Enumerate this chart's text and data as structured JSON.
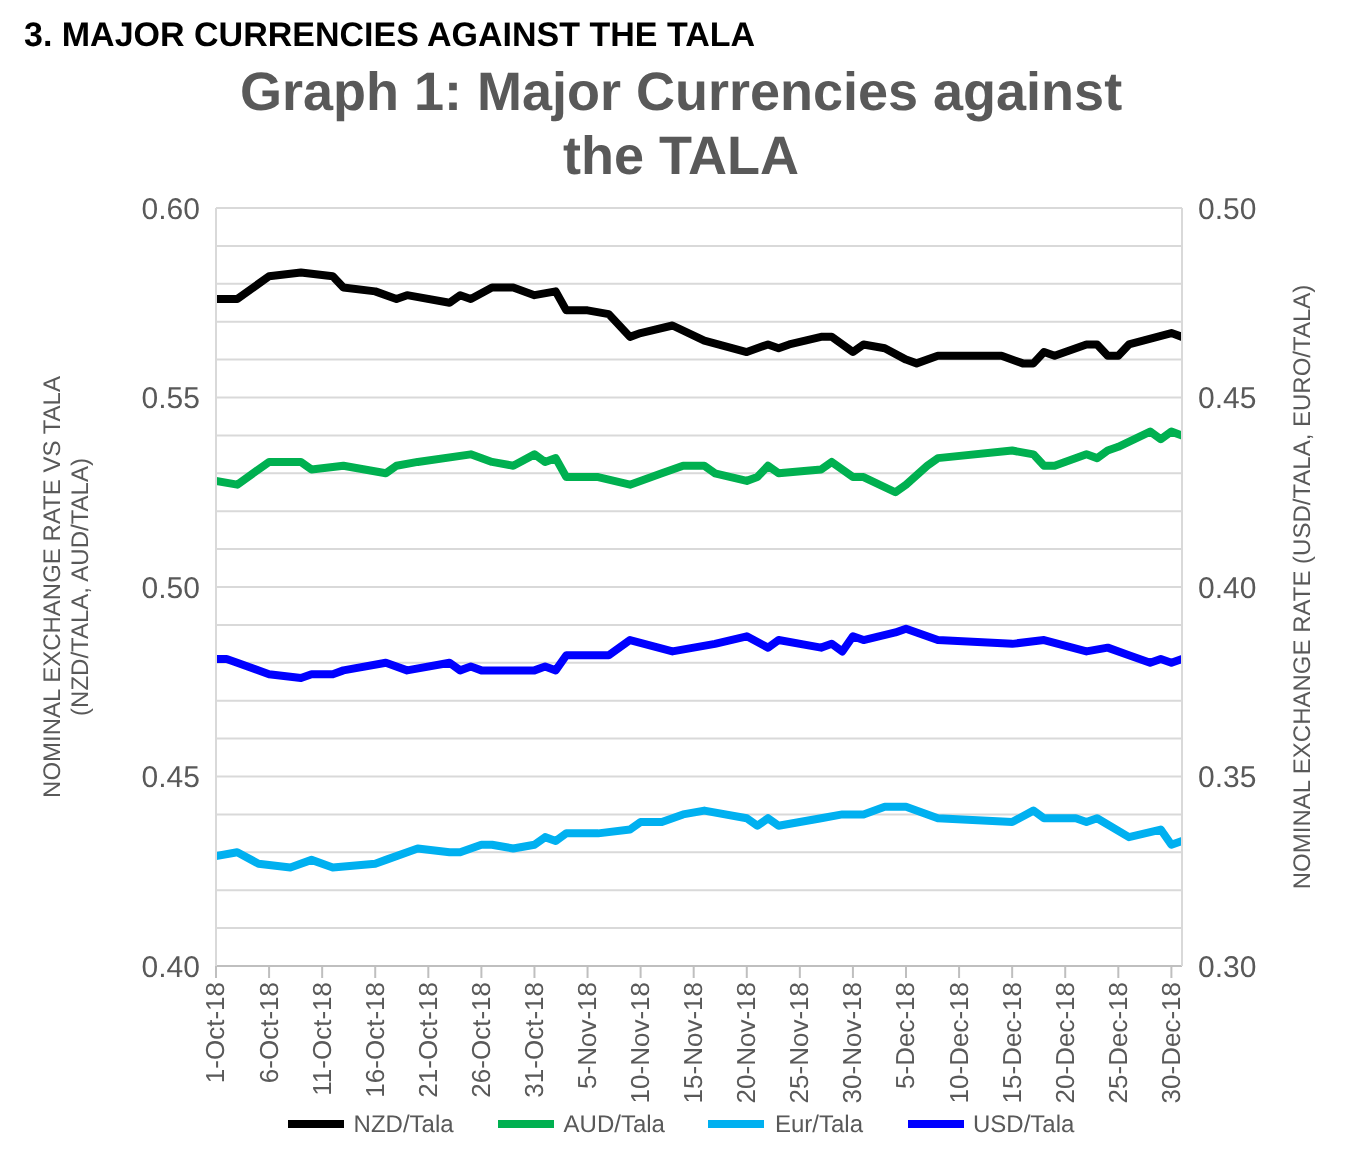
{
  "chart_data": {
    "type": "line",
    "title": "Graph 1: Major Currencies against the TALA",
    "annotations": [
      "3. MAJOR CURRENCIES AGAINST THE TALA"
    ],
    "ylabel": "NOMINAL EXCHANGE RATE VS  TALA\n(NZD/TALA, AUD/TALA)",
    "y2label": "NOMINAL EXCHANGE RATE (USD/TALA, EURO/TALA)",
    "xlim": [
      "--10-01",
      "--12-31"
    ],
    "xticks": [
      {
        "value": "--10-01",
        "label": "1-Oct-18"
      },
      {
        "value": "--10-06",
        "label": "6-Oct-18"
      },
      {
        "value": "--10-11",
        "label": "11-Oct-18"
      },
      {
        "value": "--10-16",
        "label": "16-Oct-18"
      },
      {
        "value": "--10-21",
        "label": "21-Oct-18"
      },
      {
        "value": "--10-26",
        "label": "26-Oct-18"
      },
      {
        "value": "--10-31",
        "label": "31-Oct-18"
      },
      {
        "value": "--11-05",
        "label": "5-Nov-18"
      },
      {
        "value": "--11-10",
        "label": "10-Nov-18"
      },
      {
        "value": "--11-15",
        "label": "15-Nov-18"
      },
      {
        "value": "--11-20",
        "label": "20-Nov-18"
      },
      {
        "value": "--11-25",
        "label": "25-Nov-18"
      },
      {
        "value": "--11-30",
        "label": "30-Nov-18"
      },
      {
        "value": "--12-05",
        "label": "5-Dec-18"
      },
      {
        "value": "--12-10",
        "label": "10-Dec-18"
      },
      {
        "value": "--12-15",
        "label": "15-Dec-18"
      },
      {
        "value": "--12-20",
        "label": "20-Dec-18"
      },
      {
        "value": "--12-25",
        "label": "25-Dec-18"
      },
      {
        "value": "--12-30",
        "label": "30-Dec-18"
      }
    ],
    "ylim": [
      0.4,
      0.6
    ],
    "yticks": [
      {
        "value": 0.4,
        "label": "0.40"
      },
      {
        "value": 0.41,
        "label": null
      },
      {
        "value": 0.42,
        "label": null
      },
      {
        "value": 0.43,
        "label": null
      },
      {
        "value": 0.44,
        "label": null
      },
      0.45,
      {
        "value": 0.46,
        "label": null
      },
      {
        "value": 0.47,
        "label": null
      },
      {
        "value": 0.48,
        "label": null
      },
      {
        "value": 0.49,
        "label": null
      },
      {
        "value": 0.5,
        "label": "0.50"
      },
      {
        "value": 0.51,
        "label": null
      },
      {
        "value": 0.52,
        "label": null
      },
      {
        "value": 0.53,
        "label": null
      },
      {
        "value": 0.54,
        "label": null
      },
      0.55,
      {
        "value": 0.56,
        "label": null
      },
      {
        "value": 0.57,
        "label": null
      },
      {
        "value": 0.58,
        "label": null
      },
      {
        "value": 0.59,
        "label": null
      },
      {
        "value": 0.6,
        "label": "0.60"
      }
    ],
    "y2lim": [
      0.3,
      0.5
    ],
    "y2ticks": [
      {
        "value": 0.3,
        "label": "0.30"
      },
      0.35,
      {
        "value": 0.4,
        "label": "0.40"
      },
      0.45,
      {
        "value": 0.5,
        "label": "0.50"
      }
    ],
    "grid": "y",
    "legend": "bottom",
    "marker": "none",
    "line_style": "solid",
    "series": [
      {
        "name": "NZD/Tala",
        "color": "#000000",
        "x": [
          "--10-01",
          "--10-03",
          "--10-06",
          "--10-09",
          "--10-12",
          "--10-13",
          "--10-16",
          "--10-18",
          "--10-19",
          "--10-23",
          "--10-24",
          "--10-25",
          "--10-27",
          "--10-29",
          "--10-31",
          "--11-02",
          "--11-03",
          "--11-05",
          "--11-07",
          "--11-09",
          "--11-10",
          "--11-13",
          "--11-16",
          "--11-20",
          "--11-22",
          "--11-23",
          "--11-24",
          "--11-27",
          "--11-28",
          "--11-30",
          "--12-01",
          "--12-03",
          "--12-05",
          "--12-06",
          "--12-08",
          "--12-14",
          "--12-16",
          "--12-17",
          "--12-18",
          "--12-19",
          "--12-22",
          "--12-23",
          "--12-24",
          "--12-25",
          "--12-26",
          "--12-30",
          "--12-31"
        ],
        "values": [
          0.576,
          0.576,
          0.582,
          0.583,
          0.582,
          0.579,
          0.578,
          0.576,
          0.577,
          0.575,
          0.577,
          0.576,
          0.579,
          0.579,
          0.577,
          0.578,
          0.573,
          0.573,
          0.572,
          0.566,
          0.567,
          0.569,
          0.565,
          0.562,
          0.564,
          0.563,
          0.564,
          0.566,
          0.566,
          0.562,
          0.564,
          0.563,
          0.56,
          0.559,
          0.561,
          0.561,
          0.559,
          0.559,
          0.562,
          0.561,
          0.564,
          0.564,
          0.561,
          0.561,
          0.564,
          0.567,
          0.566
        ]
      },
      {
        "name": "AUD/Tala",
        "color": "#00b050",
        "x": [
          "--10-01",
          "--10-03",
          "--10-06",
          "--10-09",
          "--10-10",
          "--10-13",
          "--10-17",
          "--10-18",
          "--10-20",
          "--10-25",
          "--10-27",
          "--10-29",
          "--10-31",
          "--11-01",
          "--11-02",
          "--11-03",
          "--11-06",
          "--11-09",
          "--11-12",
          "--11-14",
          "--11-16",
          "--11-17",
          "--11-20",
          "--11-21",
          "--11-22",
          "--11-23",
          "--11-27",
          "--11-28",
          "--11-30",
          "--12-01",
          "--12-04",
          "--12-05",
          "--12-07",
          "--12-08",
          "--12-15",
          "--12-17",
          "--12-18",
          "--12-19",
          "--12-22",
          "--12-23",
          "--12-24",
          "--12-25",
          "--12-28",
          "--12-29",
          "--12-30",
          "--12-31"
        ],
        "values": [
          0.528,
          0.527,
          0.533,
          0.533,
          0.531,
          0.532,
          0.53,
          0.532,
          0.533,
          0.535,
          0.533,
          0.532,
          0.535,
          0.533,
          0.534,
          0.529,
          0.529,
          0.527,
          0.53,
          0.532,
          0.532,
          0.53,
          0.528,
          0.529,
          0.532,
          0.53,
          0.531,
          0.533,
          0.529,
          0.529,
          0.525,
          0.527,
          0.532,
          0.534,
          0.536,
          0.535,
          0.532,
          0.532,
          0.535,
          0.534,
          0.536,
          0.537,
          0.541,
          0.539,
          0.541,
          0.54
        ]
      },
      {
        "name": "Eur/Tala",
        "color": "#00b0f0",
        "axis": "y2",
        "x": [
          "--10-01",
          "--10-03",
          "--10-05",
          "--10-08",
          "--10-10",
          "--10-12",
          "--10-16",
          "--10-17",
          "--10-20",
          "--10-23",
          "--10-24",
          "--10-26",
          "--10-27",
          "--10-29",
          "--10-31",
          "--11-01",
          "--11-02",
          "--11-03",
          "--11-06",
          "--11-09",
          "--11-10",
          "--11-12",
          "--11-14",
          "--11-16",
          "--11-20",
          "--11-21",
          "--11-22",
          "--11-23",
          "--11-27",
          "--11-29",
          "--12-01",
          "--12-03",
          "--12-05",
          "--12-08",
          "--12-15",
          "--12-17",
          "--12-18",
          "--12-21",
          "--12-22",
          "--12-23",
          "--12-26",
          "--12-29",
          "--12-30",
          "--12-31"
        ],
        "values": [
          0.329,
          0.33,
          0.327,
          0.326,
          0.328,
          0.326,
          0.327,
          0.328,
          0.331,
          0.33,
          0.33,
          0.332,
          0.332,
          0.331,
          0.332,
          0.334,
          0.333,
          0.335,
          0.335,
          0.336,
          0.338,
          0.338,
          0.34,
          0.341,
          0.339,
          0.337,
          0.339,
          0.337,
          0.339,
          0.34,
          0.34,
          0.342,
          0.342,
          0.339,
          0.338,
          0.341,
          0.339,
          0.339,
          0.338,
          0.339,
          0.334,
          0.336,
          0.332,
          0.333
        ]
      },
      {
        "name": "USD/Tala",
        "color": "#0000ff",
        "axis": "y2",
        "x": [
          "--10-01",
          "--10-02",
          "--10-03",
          "--10-06",
          "--10-09",
          "--10-10",
          "--10-12",
          "--10-13",
          "--10-17",
          "--10-19",
          "--10-23",
          "--10-24",
          "--10-25",
          "--10-26",
          "--10-30",
          "--10-31",
          "--11-01",
          "--11-02",
          "--11-03",
          "--11-07",
          "--11-09",
          "--11-13",
          "--11-17",
          "--11-20",
          "--11-22",
          "--11-23",
          "--11-27",
          "--11-28",
          "--11-29",
          "--11-30",
          "--12-01",
          "--12-04",
          "--12-05",
          "--12-08",
          "--12-15",
          "--12-18",
          "--12-22",
          "--12-24",
          "--12-26",
          "--12-28",
          "--12-29",
          "--12-30",
          "--12-31"
        ],
        "values": [
          0.381,
          0.381,
          0.38,
          0.377,
          0.376,
          0.377,
          0.377,
          0.378,
          0.38,
          0.378,
          0.38,
          0.378,
          0.379,
          0.378,
          0.378,
          0.378,
          0.379,
          0.378,
          0.382,
          0.382,
          0.386,
          0.383,
          0.385,
          0.387,
          0.384,
          0.386,
          0.384,
          0.385,
          0.383,
          0.387,
          0.386,
          0.388,
          0.389,
          0.386,
          0.385,
          0.386,
          0.383,
          0.384,
          0.382,
          0.38,
          0.381,
          0.38,
          0.381
        ]
      }
    ]
  }
}
